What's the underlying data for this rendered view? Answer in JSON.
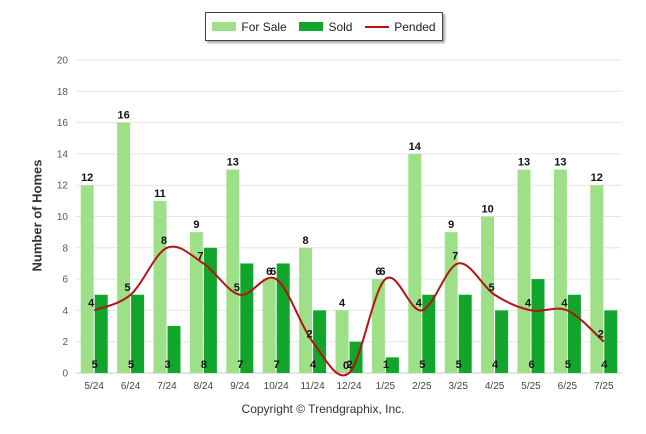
{
  "chart_data": {
    "type": "bar",
    "categories": [
      "5/24",
      "6/24",
      "7/24",
      "8/24",
      "9/24",
      "10/24",
      "11/24",
      "12/24",
      "1/25",
      "2/25",
      "3/25",
      "4/25",
      "5/25",
      "6/25",
      "7/25"
    ],
    "series": [
      {
        "name": "For Sale",
        "kind": "bar",
        "color": "#9ee088",
        "values": [
          12,
          16,
          11,
          9,
          13,
          6,
          8,
          4,
          6,
          14,
          9,
          10,
          13,
          13,
          12
        ]
      },
      {
        "name": "Sold",
        "kind": "bar",
        "color": "#12a52c",
        "values": [
          5,
          5,
          3,
          8,
          7,
          7,
          4,
          2,
          1,
          5,
          5,
          4,
          6,
          5,
          4
        ]
      },
      {
        "name": "Pended",
        "kind": "line",
        "color": "#b41414",
        "values": [
          4,
          5,
          8,
          7,
          5,
          6,
          2,
          0,
          6,
          4,
          7,
          5,
          4,
          4,
          2
        ]
      }
    ],
    "ylabel": "Number of Homes",
    "xlabel": "",
    "ylim": [
      0,
      20
    ],
    "yticks": [
      0,
      2,
      4,
      6,
      8,
      10,
      12,
      14,
      16,
      18,
      20
    ],
    "grid": true,
    "legend_position": "top-center"
  },
  "footer": {
    "copyright": "Copyright © Trendgraphix, Inc."
  }
}
